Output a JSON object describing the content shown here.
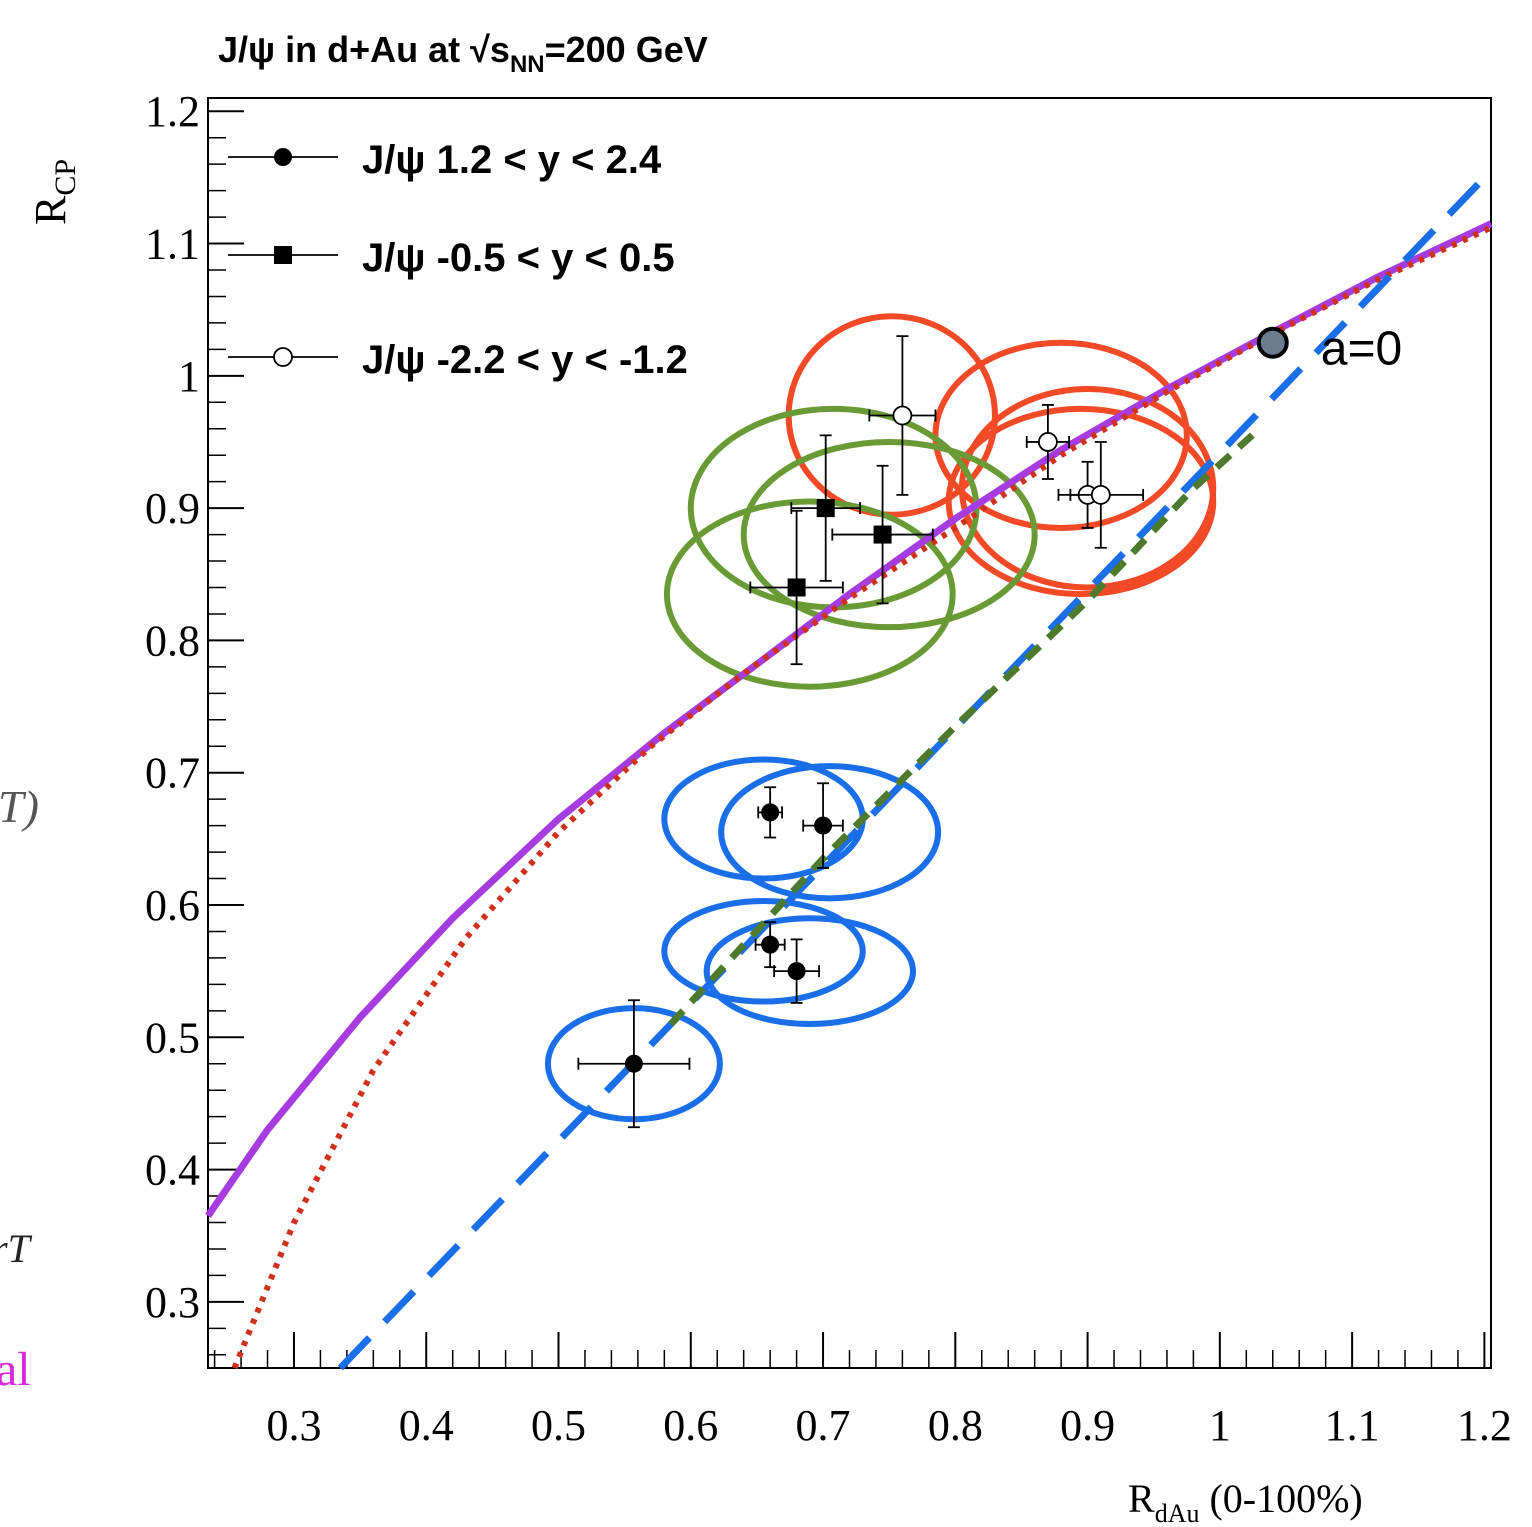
{
  "chart_data": {
    "type": "scatter",
    "title": "J/ψ in d+Au at √s",
    "title_sub": "NN",
    "title_suffix": "=200 GeV",
    "xlabel": "R",
    "xlabel_sub": "dAu",
    "xlabel_suffix": " (0-100%)",
    "ylabel": "R",
    "ylabel_sub": "CP",
    "xlim": [
      0.235,
      1.205
    ],
    "ylim": [
      0.25,
      1.21
    ],
    "x_ticks": [
      "0.3",
      "0.4",
      "0.5",
      "0.6",
      "0.7",
      "0.8",
      "0.9",
      "1",
      "1.1",
      "1.2"
    ],
    "y_ticks": [
      "0.3",
      "0.4",
      "0.5",
      "0.6",
      "0.7",
      "0.8",
      "0.9",
      "1",
      "1.1",
      "1.2"
    ],
    "legend_position": "top-left",
    "series": [
      {
        "name": "J/ψ 1.2 < y < 2.4",
        "marker": "filled-circle",
        "points": [
          {
            "x": 0.557,
            "y": 0.48,
            "ex": 0.042,
            "ey": 0.048
          },
          {
            "x": 0.66,
            "y": 0.57,
            "ex": 0.011,
            "ey": 0.017
          },
          {
            "x": 0.68,
            "y": 0.55,
            "ex": 0.017,
            "ey": 0.024
          },
          {
            "x": 0.66,
            "y": 0.67,
            "ex": 0.009,
            "ey": 0.019
          },
          {
            "x": 0.7,
            "y": 0.66,
            "ex": 0.015,
            "ey": 0.032
          }
        ]
      },
      {
        "name": "J/ψ -0.5 < y < 0.5",
        "marker": "filled-square",
        "points": [
          {
            "x": 0.68,
            "y": 0.84,
            "ex": 0.035,
            "ey": 0.058
          },
          {
            "x": 0.702,
            "y": 0.9,
            "ex": 0.026,
            "ey": 0.055
          },
          {
            "x": 0.745,
            "y": 0.88,
            "ex": 0.038,
            "ey": 0.052
          }
        ]
      },
      {
        "name": "J/ψ -2.2 < y < -1.2",
        "marker": "open-circle",
        "points": [
          {
            "x": 0.76,
            "y": 0.97,
            "ex": 0.025,
            "ey": 0.06
          },
          {
            "x": 0.87,
            "y": 0.95,
            "ex": 0.016,
            "ey": 0.028
          },
          {
            "x": 0.9,
            "y": 0.91,
            "ex": 0.013,
            "ey": 0.025
          },
          {
            "x": 0.91,
            "y": 0.91,
            "ex": 0.032,
            "ey": 0.04
          }
        ]
      }
    ],
    "curves": [
      {
        "style": "solid",
        "color": "#a63ce0",
        "points": [
          [
            0.235,
            0.365
          ],
          [
            0.28,
            0.43
          ],
          [
            0.35,
            0.515
          ],
          [
            0.42,
            0.59
          ],
          [
            0.5,
            0.665
          ],
          [
            0.58,
            0.73
          ],
          [
            0.65,
            0.782
          ],
          [
            0.72,
            0.835
          ],
          [
            0.8,
            0.892
          ],
          [
            0.88,
            0.944
          ],
          [
            0.96,
            0.99
          ],
          [
            1.04,
            1.033
          ],
          [
            1.12,
            1.075
          ],
          [
            1.205,
            1.115
          ]
        ]
      },
      {
        "style": "dotted",
        "color": "#d0301c",
        "points": [
          [
            0.255,
            0.25
          ],
          [
            0.3,
            0.36
          ],
          [
            0.36,
            0.475
          ],
          [
            0.43,
            0.575
          ],
          [
            0.5,
            0.655
          ],
          [
            0.57,
            0.72
          ],
          [
            0.64,
            0.775
          ],
          [
            0.72,
            0.832
          ],
          [
            0.8,
            0.885
          ],
          [
            0.88,
            0.94
          ],
          [
            0.96,
            0.988
          ],
          [
            1.04,
            1.032
          ],
          [
            1.12,
            1.073
          ],
          [
            1.205,
            1.112
          ]
        ]
      },
      {
        "style": "long-dash",
        "color": "#1a6fe8",
        "points": [
          [
            0.335,
            0.25
          ],
          [
            1.205,
            1.155
          ]
        ]
      },
      {
        "style": "dashed",
        "color": "#4d7a2c",
        "points": [
          [
            0.585,
            0.51
          ],
          [
            0.7,
            0.635
          ],
          [
            0.8,
            0.735
          ],
          [
            0.9,
            0.83
          ],
          [
            0.98,
            0.915
          ],
          [
            1.03,
            0.96
          ]
        ]
      }
    ],
    "annotation_point": {
      "x": 1.04,
      "y": 1.025,
      "label": "a=0"
    },
    "ellipses": [
      {
        "color": "#f24a26",
        "cx": 0.752,
        "cy": 0.97,
        "rx": 0.078,
        "ry": 0.075
      },
      {
        "color": "#f24a26",
        "cx": 0.88,
        "cy": 0.955,
        "rx": 0.095,
        "ry": 0.07
      },
      {
        "color": "#f24a26",
        "cx": 0.9,
        "cy": 0.915,
        "rx": 0.095,
        "ry": 0.075
      },
      {
        "color": "#f24a26",
        "cx": 0.895,
        "cy": 0.905,
        "rx": 0.1,
        "ry": 0.07
      },
      {
        "color": "#6a9a35",
        "cx": 0.69,
        "cy": 0.835,
        "rx": 0.108,
        "ry": 0.07
      },
      {
        "color": "#6a9a35",
        "cx": 0.708,
        "cy": 0.9,
        "rx": 0.108,
        "ry": 0.075
      },
      {
        "color": "#6a9a35",
        "cx": 0.75,
        "cy": 0.88,
        "rx": 0.11,
        "ry": 0.07
      },
      {
        "color": "#1a6fe8",
        "cx": 0.557,
        "cy": 0.48,
        "rx": 0.065,
        "ry": 0.042
      },
      {
        "color": "#1a6fe8",
        "cx": 0.655,
        "cy": 0.565,
        "rx": 0.075,
        "ry": 0.038
      },
      {
        "color": "#1a6fe8",
        "cx": 0.69,
        "cy": 0.55,
        "rx": 0.078,
        "ry": 0.04
      },
      {
        "color": "#1a6fe8",
        "cx": 0.655,
        "cy": 0.665,
        "rx": 0.075,
        "ry": 0.045
      },
      {
        "color": "#1a6fe8",
        "cx": 0.705,
        "cy": 0.655,
        "rx": 0.082,
        "ry": 0.05
      }
    ],
    "left_margin_fragments": [
      "T)",
      "rT",
      "al"
    ],
    "left_margin_colors": [
      "#555555",
      "#222222",
      "#d928d9"
    ]
  }
}
